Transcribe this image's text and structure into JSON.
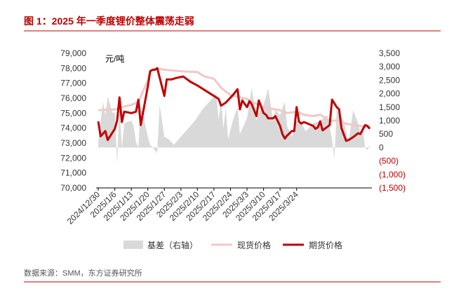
{
  "header": {
    "title": "图 1：2025 年一季度锂价整体震荡走弱"
  },
  "footer": {
    "source": "数据来源：SMM，东方证券研究所"
  },
  "chart_data": {
    "type": "line",
    "title": "图 1：2025 年一季度锂价整体震荡走弱",
    "unit_label": "元/吨",
    "x_tick_labels": [
      "2024/12/30",
      "2025/1/6",
      "2025/1/13",
      "2025/1/20",
      "2025/1/27",
      "2025/2/3",
      "2025/2/10",
      "2025/2/17",
      "2025/2/24",
      "2025/3/3",
      "2025/3/10",
      "2025/3/17",
      "2025/3/24"
    ],
    "left_axis": {
      "ylim": [
        70000,
        79000
      ],
      "ticks": [
        "70,000",
        "71,000",
        "72,000",
        "73,000",
        "74,000",
        "75,000",
        "76,000",
        "77,000",
        "78,000",
        "79,000"
      ]
    },
    "right_axis": {
      "ylim": [
        -1500,
        3500
      ],
      "ticks": [
        "(1,500)",
        "(1,000)",
        "(500)",
        "0",
        "500",
        "1,000",
        "1,500",
        "2,000",
        "2,500",
        "3,000",
        "3,500"
      ]
    },
    "legend": {
      "position": "bottom",
      "entries": [
        "基差（右轴）",
        "现货价格",
        "期货价格"
      ]
    },
    "grid": false,
    "colors": {
      "basis": "#d9d9d9",
      "spot": "#f4c7c7",
      "futures": "#c00000",
      "title": "#c00000",
      "rule": "#c00000"
    },
    "series": [
      {
        "name": "期货价格",
        "type": "line",
        "axis": "left",
        "points": [
          [
            "2024-12-30",
            74450
          ],
          [
            "2024-12-31",
            73450
          ],
          [
            "2025-01-02",
            73800
          ],
          [
            "2025-01-03",
            73200
          ],
          [
            "2025-01-06",
            73950
          ],
          [
            "2025-01-07",
            74500
          ],
          [
            "2025-01-08",
            76050
          ],
          [
            "2025-01-09",
            74400
          ],
          [
            "2025-01-10",
            75100
          ],
          [
            "2025-01-13",
            75000
          ],
          [
            "2025-01-14",
            75050
          ],
          [
            "2025-01-15",
            75100
          ],
          [
            "2025-01-16",
            75900
          ],
          [
            "2025-01-17",
            74200
          ],
          [
            "2025-01-20",
            76800
          ],
          [
            "2025-01-21",
            77800
          ],
          [
            "2025-01-22",
            77900
          ],
          [
            "2025-01-23",
            77900
          ],
          [
            "2025-01-24",
            78000
          ],
          [
            "2025-01-27",
            76150
          ],
          [
            "2025-01-28",
            77250
          ],
          [
            "2025-01-30",
            77250
          ],
          [
            "2025-02-01",
            77350
          ],
          [
            "2025-02-04",
            77450
          ],
          [
            "2025-02-07",
            77100
          ],
          [
            "2025-02-10",
            76850
          ],
          [
            "2025-02-13",
            76550
          ],
          [
            "2025-02-16",
            76250
          ],
          [
            "2025-02-19",
            75950
          ],
          [
            "2025-02-20",
            75500
          ],
          [
            "2025-02-22",
            75700
          ],
          [
            "2025-02-25",
            76200
          ],
          [
            "2025-02-27",
            76600
          ],
          [
            "2025-02-28",
            75250
          ],
          [
            "2025-03-01",
            75850
          ],
          [
            "2025-03-03",
            75400
          ],
          [
            "2025-03-04",
            75800
          ],
          [
            "2025-03-05",
            75600
          ],
          [
            "2025-03-07",
            74800
          ],
          [
            "2025-03-08",
            75850
          ],
          [
            "2025-03-10",
            75000
          ],
          [
            "2025-03-11",
            74900
          ],
          [
            "2025-03-12",
            74650
          ],
          [
            "2025-03-14",
            74650
          ],
          [
            "2025-03-15",
            74800
          ],
          [
            "2025-03-17",
            74150
          ],
          [
            "2025-03-18",
            73600
          ],
          [
            "2025-03-19",
            73300
          ],
          [
            "2025-03-20",
            73500
          ],
          [
            "2025-03-22",
            73800
          ],
          [
            "2025-03-23",
            73800
          ],
          [
            "2025-03-24",
            75400
          ],
          [
            "2025-03-25",
            74450
          ],
          [
            "2025-03-26",
            74300
          ],
          [
            "2025-03-27",
            74400
          ],
          [
            "2025-03-28",
            74350
          ],
          [
            "2025-03-31",
            74150
          ],
          [
            "2025-04-01",
            73950
          ],
          [
            "2025-04-02",
            74050
          ],
          [
            "2025-04-03",
            74450
          ],
          [
            "2025-04-04",
            73850
          ],
          [
            "2025-04-07",
            74200
          ],
          [
            "2025-04-08",
            75900
          ],
          [
            "2025-04-10",
            75400
          ],
          [
            "2025-04-11",
            75250
          ],
          [
            "2025-04-12",
            74000
          ],
          [
            "2025-04-14",
            73150
          ],
          [
            "2025-04-15",
            73200
          ],
          [
            "2025-04-17",
            73400
          ],
          [
            "2025-04-19",
            73650
          ],
          [
            "2025-04-20",
            73600
          ],
          [
            "2025-04-22",
            74200
          ],
          [
            "2025-04-23",
            74150
          ],
          [
            "2025-04-24",
            73950
          ]
        ]
      },
      {
        "name": "现货价格",
        "type": "line",
        "axis": "left",
        "points": [
          [
            "2024-12-30",
            75200
          ],
          [
            "2025-01-06",
            75250
          ],
          [
            "2025-01-09",
            75400
          ],
          [
            "2025-01-13",
            75550
          ],
          [
            "2025-01-16",
            75750
          ],
          [
            "2025-01-20",
            77200
          ],
          [
            "2025-01-21",
            77850
          ],
          [
            "2025-01-24",
            78000
          ],
          [
            "2025-01-27",
            77900
          ],
          [
            "2025-02-03",
            77800
          ],
          [
            "2025-02-10",
            77750
          ],
          [
            "2025-02-13",
            77450
          ],
          [
            "2025-02-17",
            77300
          ],
          [
            "2025-02-20",
            76700
          ],
          [
            "2025-02-24",
            76200
          ],
          [
            "2025-02-27",
            76100
          ],
          [
            "2025-03-03",
            75950
          ],
          [
            "2025-03-06",
            75700
          ],
          [
            "2025-03-10",
            75400
          ],
          [
            "2025-03-13",
            75300
          ],
          [
            "2025-03-17",
            75200
          ],
          [
            "2025-03-20",
            75000
          ],
          [
            "2025-03-24",
            75100
          ],
          [
            "2025-03-27",
            74900
          ],
          [
            "2025-03-31",
            74800
          ],
          [
            "2025-04-03",
            74900
          ],
          [
            "2025-04-07",
            74500
          ],
          [
            "2025-04-10",
            74500
          ],
          [
            "2025-04-14",
            74300
          ],
          [
            "2025-04-17",
            74200
          ],
          [
            "2025-04-20",
            74150
          ],
          [
            "2025-04-24",
            74050
          ]
        ]
      },
      {
        "name": "基差（右轴）",
        "type": "area",
        "axis": "right",
        "points": [
          [
            "2024-12-30",
            200
          ],
          [
            "2025-01-01",
            1700
          ],
          [
            "2025-01-02",
            1200
          ],
          [
            "2025-01-03",
            1900
          ],
          [
            "2025-01-05",
            1300
          ],
          [
            "2025-01-06",
            1300
          ],
          [
            "2025-01-07",
            -600
          ],
          [
            "2025-01-08",
            1500
          ],
          [
            "2025-01-09",
            0
          ],
          [
            "2025-01-10",
            900
          ],
          [
            "2025-01-13",
            1000
          ],
          [
            "2025-01-14",
            800
          ],
          [
            "2025-01-15",
            200
          ],
          [
            "2025-01-16",
            0
          ],
          [
            "2025-01-17",
            1600
          ],
          [
            "2025-01-20",
            400
          ],
          [
            "2025-01-21",
            100
          ],
          [
            "2025-01-23",
            -100
          ],
          [
            "2025-01-24",
            -200
          ],
          [
            "2025-01-25",
            1600
          ],
          [
            "2025-01-27",
            400
          ],
          [
            "2025-01-29",
            300
          ],
          [
            "2025-01-31",
            100
          ],
          [
            "2025-02-03",
            400
          ],
          [
            "2025-02-06",
            700
          ],
          [
            "2025-02-09",
            1000
          ],
          [
            "2025-02-12",
            1400
          ],
          [
            "2025-02-15",
            1700
          ],
          [
            "2025-02-18",
            2000
          ],
          [
            "2025-02-19",
            1000
          ],
          [
            "2025-02-20",
            1800
          ],
          [
            "2025-02-21",
            700
          ],
          [
            "2025-02-22",
            1500
          ],
          [
            "2025-02-23",
            300
          ],
          [
            "2025-02-25",
            1000
          ],
          [
            "2025-02-27",
            1500
          ],
          [
            "2025-02-28",
            500
          ],
          [
            "2025-03-03",
            1100
          ],
          [
            "2025-03-05",
            2200
          ],
          [
            "2025-03-07",
            1000
          ],
          [
            "2025-03-08",
            1300
          ],
          [
            "2025-03-10",
            1600
          ],
          [
            "2025-03-12",
            2200
          ],
          [
            "2025-03-14",
            1000
          ],
          [
            "2025-03-15",
            1400
          ],
          [
            "2025-03-17",
            1200
          ],
          [
            "2025-03-19",
            1700
          ],
          [
            "2025-03-20",
            800
          ],
          [
            "2025-03-22",
            400
          ],
          [
            "2025-03-24",
            1000
          ],
          [
            "2025-03-26",
            900
          ],
          [
            "2025-03-28",
            600
          ],
          [
            "2025-03-31",
            900
          ],
          [
            "2025-04-03",
            1000
          ],
          [
            "2025-04-06",
            1200
          ],
          [
            "2025-04-08",
            300
          ],
          [
            "2025-04-09",
            -400
          ],
          [
            "2025-04-10",
            1400
          ],
          [
            "2025-04-13",
            1000
          ],
          [
            "2025-04-15",
            200
          ],
          [
            "2025-04-17",
            1400
          ],
          [
            "2025-04-19",
            900
          ],
          [
            "2025-04-20",
            600
          ],
          [
            "2025-04-21",
            800
          ],
          [
            "2025-04-22",
            0
          ],
          [
            "2025-04-23",
            -100
          ],
          [
            "2025-04-24",
            100
          ]
        ]
      }
    ]
  }
}
